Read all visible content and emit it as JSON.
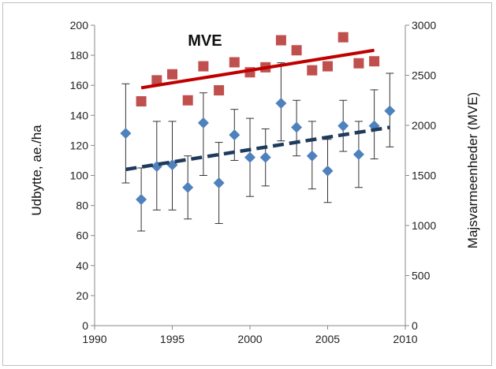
{
  "chart_data": {
    "type": "scatter",
    "title": "",
    "xlabel": "",
    "ylabel": "Udbytte, ae./ha",
    "y2label": "Majsvarmeenheder (MVE)",
    "xlim": [
      1990,
      2010
    ],
    "ylim": [
      0,
      200
    ],
    "y2lim": [
      0,
      3000
    ],
    "x_ticks": [
      1990,
      1995,
      2000,
      2005,
      2010
    ],
    "y_ticks": [
      0,
      20,
      40,
      60,
      80,
      100,
      120,
      140,
      160,
      180,
      200
    ],
    "y2_ticks": [
      0,
      500,
      1000,
      1500,
      2000,
      2500,
      3000
    ],
    "grid": false,
    "annotations": [
      {
        "text": "MVE",
        "x": 1996,
        "y": 2850,
        "axis": "y2"
      }
    ],
    "series": [
      {
        "axis": "y",
        "marker": "diamond",
        "color": "#4f81bd",
        "x": [
          1992,
          1993,
          1994,
          1995,
          1996,
          1997,
          1998,
          1999,
          2000,
          2001,
          2002,
          2003,
          2004,
          2005,
          2006,
          2007,
          2008,
          2009
        ],
        "y": [
          128,
          84,
          106,
          107,
          92,
          135,
          95,
          127,
          112,
          112,
          148,
          132,
          113,
          103,
          133,
          114,
          133,
          143
        ],
        "err_low": [
          95,
          63,
          77,
          77,
          71,
          100,
          68,
          110,
          86,
          93,
          123,
          113,
          91,
          82,
          116,
          92,
          111,
          119
        ],
        "err_high": [
          161,
          105,
          136,
          136,
          113,
          155,
          122,
          144,
          138,
          131,
          175,
          150,
          136,
          124,
          150,
          136,
          157,
          168
        ]
      },
      {
        "axis": "y",
        "type": "trendline",
        "style": "dashed",
        "color": "#1f3b5c",
        "x": [
          1992,
          2009
        ],
        "y": [
          104,
          132
        ]
      },
      {
        "axis": "y2",
        "marker": "square",
        "color": "#c0504d",
        "x": [
          1993,
          1994,
          1995,
          1996,
          1997,
          1998,
          1999,
          2000,
          2001,
          2002,
          2003,
          2004,
          2005,
          2006,
          2007,
          2008
        ],
        "y": [
          2240,
          2450,
          2510,
          2250,
          2590,
          2350,
          2630,
          2530,
          2580,
          2850,
          2750,
          2550,
          2590,
          2880,
          2620,
          2640
        ]
      },
      {
        "axis": "y2",
        "type": "trendline",
        "style": "solid",
        "color": "#c00000",
        "x": [
          1993,
          2008
        ],
        "y": [
          2375,
          2750
        ]
      }
    ]
  }
}
